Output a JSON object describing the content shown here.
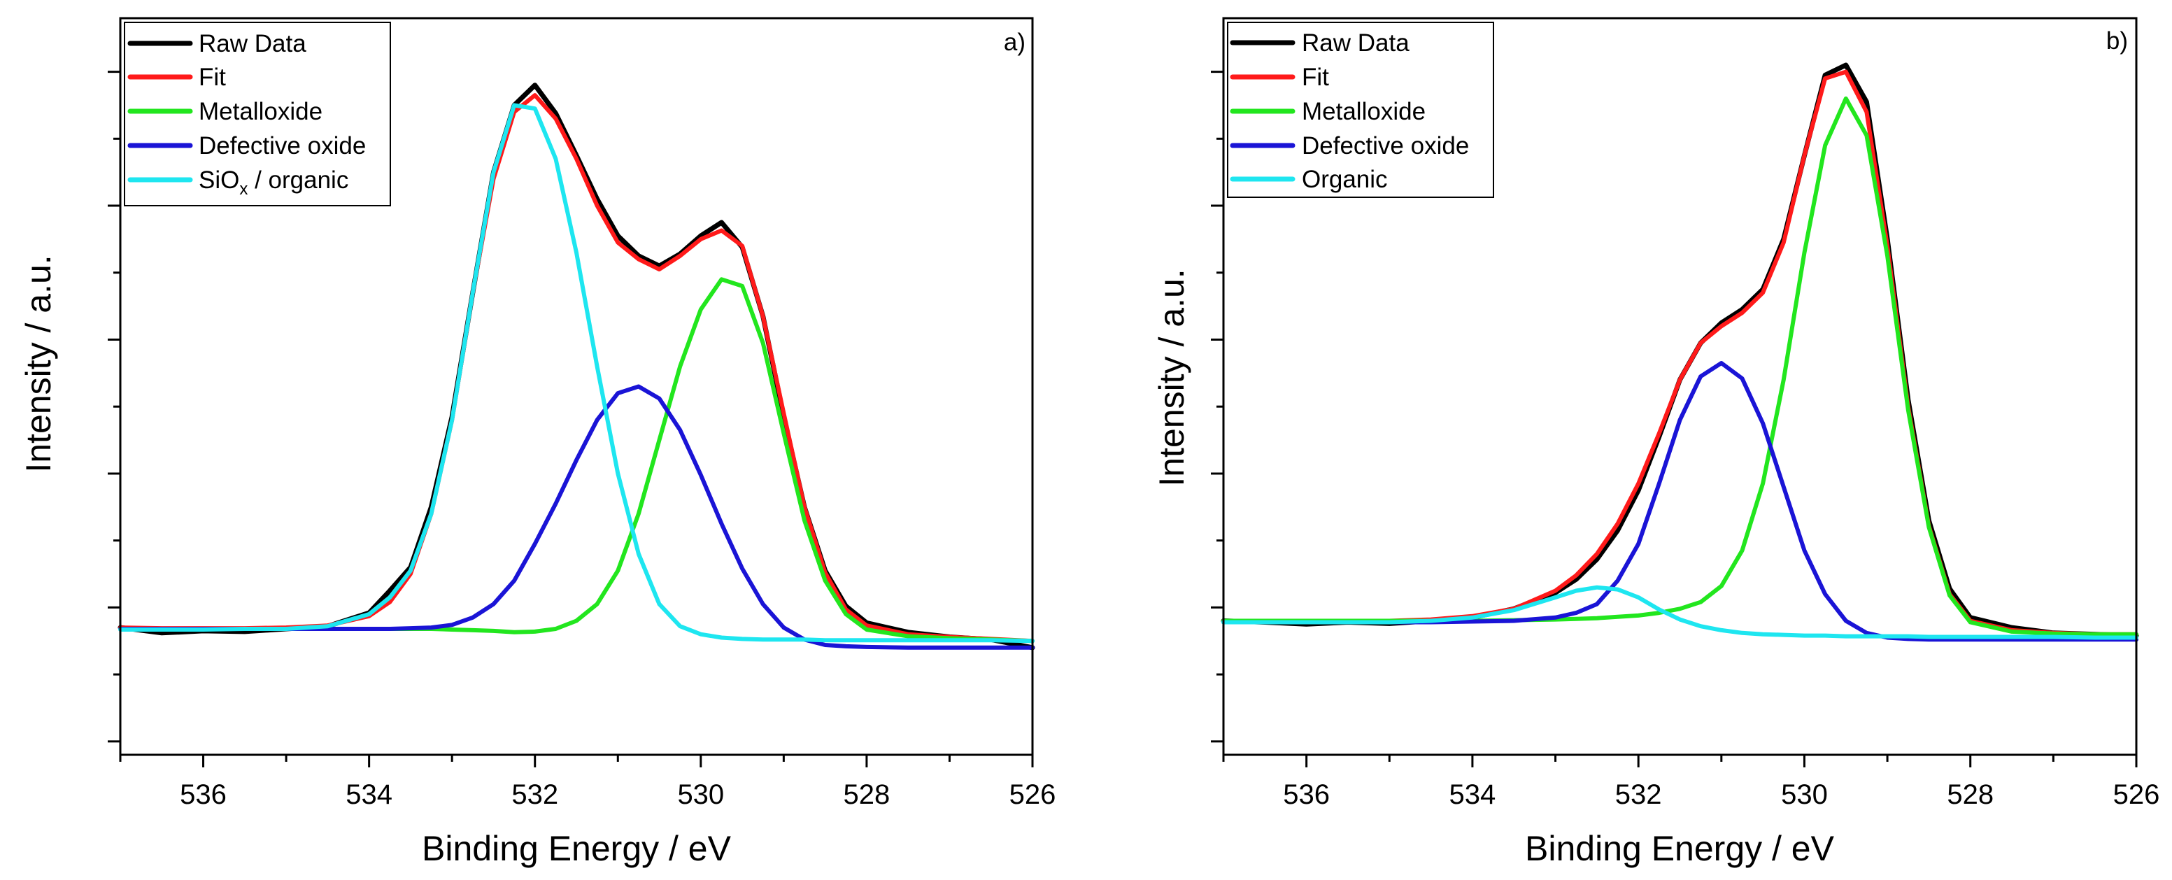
{
  "chart_data": [
    {
      "type": "line",
      "panel_label": "a)",
      "xlabel": "Binding Energy /  eV",
      "ylabel": "Intensity /  a.u.",
      "xlim": [
        537,
        526
      ],
      "ylim": [
        -0.2,
        10.8
      ],
      "x_ticks": [
        536,
        534,
        532,
        530,
        528,
        526
      ],
      "x_tick_labels": [
        "536",
        "534",
        "532",
        "530",
        "528",
        "526"
      ],
      "legend_position": "top-left",
      "legend": [
        {
          "name": "Raw Data",
          "color": "#000000"
        },
        {
          "name": "Fit",
          "color": "#ff1a1a"
        },
        {
          "name": "Metalloxide",
          "color": "#22e61e"
        },
        {
          "name": "Defective oxide",
          "color": "#1a14d6"
        },
        {
          "name": "SiO",
          "subscript": "x",
          "suffix": " / organic",
          "color": "#1ee6f0"
        }
      ],
      "x": [
        537,
        536.5,
        536,
        535.5,
        535,
        534.5,
        534,
        533.75,
        533.5,
        533.25,
        533,
        532.75,
        532.5,
        532.25,
        532,
        531.75,
        531.5,
        531.25,
        531,
        530.75,
        530.5,
        530.25,
        530,
        529.75,
        529.5,
        529.25,
        529,
        528.75,
        528.5,
        528.25,
        528,
        527.5,
        527,
        526.5,
        526
      ],
      "series": [
        {
          "name": "Raw Data",
          "color": "#000000",
          "values": [
            1.7,
            1.62,
            1.65,
            1.64,
            1.68,
            1.72,
            1.92,
            2.25,
            2.6,
            3.5,
            4.85,
            6.7,
            8.5,
            9.5,
            9.8,
            9.38,
            8.75,
            8.1,
            7.55,
            7.25,
            7.1,
            7.28,
            7.55,
            7.75,
            7.38,
            6.35,
            4.85,
            3.5,
            2.55,
            2.02,
            1.77,
            1.63,
            1.56,
            1.52,
            1.4
          ]
        },
        {
          "name": "Fit",
          "color": "#ff1a1a",
          "values": [
            1.7,
            1.69,
            1.69,
            1.69,
            1.7,
            1.73,
            1.87,
            2.08,
            2.5,
            3.4,
            4.8,
            6.7,
            8.4,
            9.4,
            9.65,
            9.3,
            8.7,
            8.0,
            7.45,
            7.2,
            7.05,
            7.25,
            7.5,
            7.63,
            7.4,
            6.35,
            4.9,
            3.5,
            2.52,
            1.97,
            1.73,
            1.6,
            1.56,
            1.53,
            1.5
          ]
        },
        {
          "name": "Metalloxide",
          "color": "#22e61e",
          "values": [
            1.68,
            1.68,
            1.68,
            1.68,
            1.68,
            1.68,
            1.68,
            1.68,
            1.68,
            1.68,
            1.67,
            1.66,
            1.65,
            1.63,
            1.64,
            1.68,
            1.8,
            2.05,
            2.55,
            3.4,
            4.5,
            5.6,
            6.45,
            6.9,
            6.8,
            5.95,
            4.6,
            3.3,
            2.4,
            1.9,
            1.67,
            1.57,
            1.54,
            1.52,
            1.5
          ]
        },
        {
          "name": "Defective oxide",
          "color": "#1a14d6",
          "values": [
            1.68,
            1.68,
            1.68,
            1.68,
            1.68,
            1.68,
            1.68,
            1.68,
            1.69,
            1.7,
            1.74,
            1.85,
            2.05,
            2.4,
            2.95,
            3.55,
            4.2,
            4.8,
            5.2,
            5.3,
            5.12,
            4.65,
            3.98,
            3.25,
            2.58,
            2.05,
            1.7,
            1.52,
            1.44,
            1.42,
            1.41,
            1.4,
            1.4,
            1.4,
            1.4
          ]
        },
        {
          "name": "SiOx / organic",
          "color": "#1ee6f0",
          "values": [
            1.67,
            1.67,
            1.67,
            1.68,
            1.68,
            1.72,
            1.9,
            2.15,
            2.55,
            3.4,
            4.8,
            6.7,
            8.5,
            9.5,
            9.45,
            8.7,
            7.3,
            5.6,
            4.0,
            2.8,
            2.05,
            1.72,
            1.6,
            1.55,
            1.53,
            1.52,
            1.52,
            1.52,
            1.51,
            1.51,
            1.51,
            1.51,
            1.51,
            1.51,
            1.5
          ]
        }
      ]
    },
    {
      "type": "line",
      "panel_label": "b)",
      "xlabel": "Binding Energy /  eV",
      "ylabel": "Intensity /  a.u.",
      "xlim": [
        537,
        526
      ],
      "ylim": [
        -0.2,
        10.8
      ],
      "x_ticks": [
        536,
        534,
        532,
        530,
        528,
        526
      ],
      "x_tick_labels": [
        "536",
        "534",
        "532",
        "530",
        "528",
        "526"
      ],
      "legend_position": "top-left",
      "legend": [
        {
          "name": "Raw Data",
          "color": "#000000"
        },
        {
          "name": "Fit",
          "color": "#ff1a1a"
        },
        {
          "name": "Metalloxide",
          "color": "#22e61e"
        },
        {
          "name": "Defective oxide",
          "color": "#1a14d6"
        },
        {
          "name": "Organic",
          "color": "#1ee6f0"
        }
      ],
      "x": [
        537,
        536.5,
        536,
        535.5,
        535,
        534.5,
        534,
        533.5,
        533,
        532.75,
        532.5,
        532.25,
        532,
        531.75,
        531.5,
        531.25,
        531,
        530.75,
        530.5,
        530.25,
        530,
        529.75,
        529.5,
        529.25,
        529,
        528.75,
        528.5,
        528.25,
        528,
        527.5,
        527,
        526.5,
        526
      ],
      "series": [
        {
          "name": "Raw Data",
          "color": "#000000",
          "values": [
            1.8,
            1.78,
            1.75,
            1.78,
            1.76,
            1.8,
            1.85,
            1.98,
            2.22,
            2.42,
            2.72,
            3.15,
            3.75,
            4.55,
            5.4,
            5.95,
            6.25,
            6.45,
            6.75,
            7.5,
            8.75,
            9.95,
            10.1,
            9.55,
            7.5,
            5.1,
            3.3,
            2.28,
            1.85,
            1.7,
            1.62,
            1.6,
            1.58
          ]
        },
        {
          "name": "Fit",
          "color": "#ff1a1a",
          "values": [
            1.8,
            1.8,
            1.8,
            1.8,
            1.8,
            1.82,
            1.87,
            1.98,
            2.25,
            2.48,
            2.8,
            3.25,
            3.85,
            4.6,
            5.4,
            5.95,
            6.2,
            6.4,
            6.7,
            7.45,
            8.75,
            9.9,
            10.0,
            9.4,
            7.4,
            5.0,
            3.22,
            2.2,
            1.8,
            1.66,
            1.62,
            1.6,
            1.6
          ]
        },
        {
          "name": "Metalloxide",
          "color": "#22e61e",
          "values": [
            1.8,
            1.8,
            1.8,
            1.8,
            1.8,
            1.8,
            1.8,
            1.81,
            1.82,
            1.83,
            1.84,
            1.86,
            1.88,
            1.92,
            1.98,
            2.08,
            2.32,
            2.85,
            3.85,
            5.4,
            7.3,
            8.9,
            9.6,
            9.05,
            7.25,
            4.95,
            3.2,
            2.18,
            1.78,
            1.64,
            1.61,
            1.6,
            1.6
          ]
        },
        {
          "name": "Defective oxide",
          "color": "#1a14d6",
          "values": [
            1.78,
            1.78,
            1.78,
            1.78,
            1.78,
            1.78,
            1.79,
            1.8,
            1.85,
            1.92,
            2.05,
            2.4,
            2.95,
            3.85,
            4.8,
            5.45,
            5.65,
            5.42,
            4.75,
            3.8,
            2.85,
            2.2,
            1.8,
            1.62,
            1.55,
            1.53,
            1.52,
            1.52,
            1.52,
            1.52,
            1.52,
            1.52,
            1.52
          ]
        },
        {
          "name": "Organic",
          "color": "#1ee6f0",
          "values": [
            1.78,
            1.78,
            1.78,
            1.78,
            1.78,
            1.8,
            1.85,
            1.96,
            2.15,
            2.25,
            2.3,
            2.27,
            2.15,
            1.97,
            1.82,
            1.72,
            1.66,
            1.62,
            1.6,
            1.59,
            1.58,
            1.58,
            1.57,
            1.57,
            1.57,
            1.57,
            1.56,
            1.56,
            1.56,
            1.56,
            1.56,
            1.55,
            1.55
          ]
        }
      ]
    }
  ]
}
